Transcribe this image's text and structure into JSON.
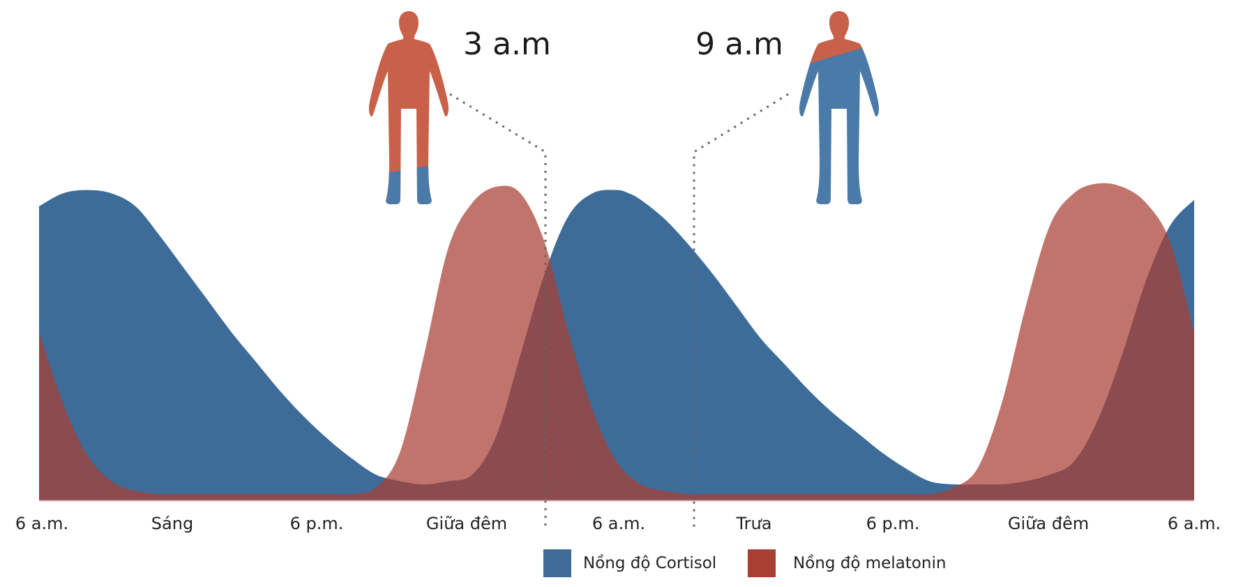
{
  "chart_data": {
    "type": "area",
    "x_unit": "hours since first 6 a.m.",
    "x_range": [
      0,
      48
    ],
    "y_range": [
      0,
      1
    ],
    "grid": false,
    "legend_position": "bottom-center",
    "tick_labels": [
      "6 a.m.",
      "Sáng",
      "6 p.m.",
      "Giữa đêm",
      "6 a.m.",
      "Trưa",
      "6 p.m.",
      "Giữa đêm",
      "6 a.m."
    ],
    "series": [
      {
        "name": "Nồng độ Cortisol",
        "color": "#2e5f8f",
        "opacity": 0.92,
        "x": [
          0,
          1,
          2,
          3,
          4,
          5,
          6,
          7,
          8,
          9,
          10,
          11,
          12,
          13,
          14,
          15,
          16,
          17,
          18,
          19,
          20,
          21,
          22,
          23,
          24,
          24.5,
          25,
          26,
          27,
          28,
          29,
          30,
          31,
          32,
          33,
          34,
          35,
          36,
          37,
          38,
          39,
          40,
          41,
          42,
          43,
          44,
          45,
          46,
          47,
          48
        ],
        "values": [
          0.91,
          0.95,
          0.96,
          0.95,
          0.91,
          0.82,
          0.72,
          0.62,
          0.52,
          0.43,
          0.34,
          0.26,
          0.19,
          0.13,
          0.08,
          0.06,
          0.05,
          0.06,
          0.08,
          0.2,
          0.45,
          0.7,
          0.88,
          0.95,
          0.96,
          0.95,
          0.93,
          0.87,
          0.79,
          0.7,
          0.6,
          0.5,
          0.42,
          0.34,
          0.27,
          0.21,
          0.15,
          0.1,
          0.06,
          0.05,
          0.05,
          0.05,
          0.06,
          0.08,
          0.12,
          0.25,
          0.45,
          0.68,
          0.85,
          0.93
        ]
      },
      {
        "name": "Nồng độ melatonin",
        "color": "#a93f33",
        "opacity": 0.72,
        "x": [
          0,
          1,
          2,
          3,
          4,
          5,
          6,
          7,
          8,
          9,
          10,
          11,
          12,
          13,
          14,
          15,
          16,
          17,
          18,
          19,
          20,
          21,
          22,
          23,
          24,
          25,
          26,
          27,
          28,
          29,
          30,
          31,
          32,
          33,
          34,
          35,
          36,
          37,
          38,
          39,
          40,
          41,
          42,
          43,
          44,
          45,
          46,
          47,
          48
        ],
        "values": [
          0.52,
          0.3,
          0.14,
          0.06,
          0.03,
          0.02,
          0.02,
          0.02,
          0.02,
          0.02,
          0.02,
          0.02,
          0.02,
          0.02,
          0.04,
          0.15,
          0.45,
          0.78,
          0.92,
          0.97,
          0.95,
          0.8,
          0.52,
          0.28,
          0.12,
          0.05,
          0.03,
          0.02,
          0.02,
          0.02,
          0.02,
          0.02,
          0.02,
          0.02,
          0.02,
          0.02,
          0.02,
          0.02,
          0.04,
          0.1,
          0.3,
          0.6,
          0.85,
          0.95,
          0.98,
          0.97,
          0.92,
          0.8,
          0.52
        ]
      }
    ],
    "annotations": [
      {
        "label": "3 a.m",
        "x": 21,
        "figure": "mostly-melatonin",
        "figure_colors": {
          "top": "#c9614a",
          "bottom": "#4a7aa8"
        }
      },
      {
        "label": "9 a.m",
        "x": 27,
        "figure": "mostly-cortisol",
        "figure_colors": {
          "top": "#c9614a",
          "bottom": "#4a7aa8"
        }
      }
    ]
  }
}
